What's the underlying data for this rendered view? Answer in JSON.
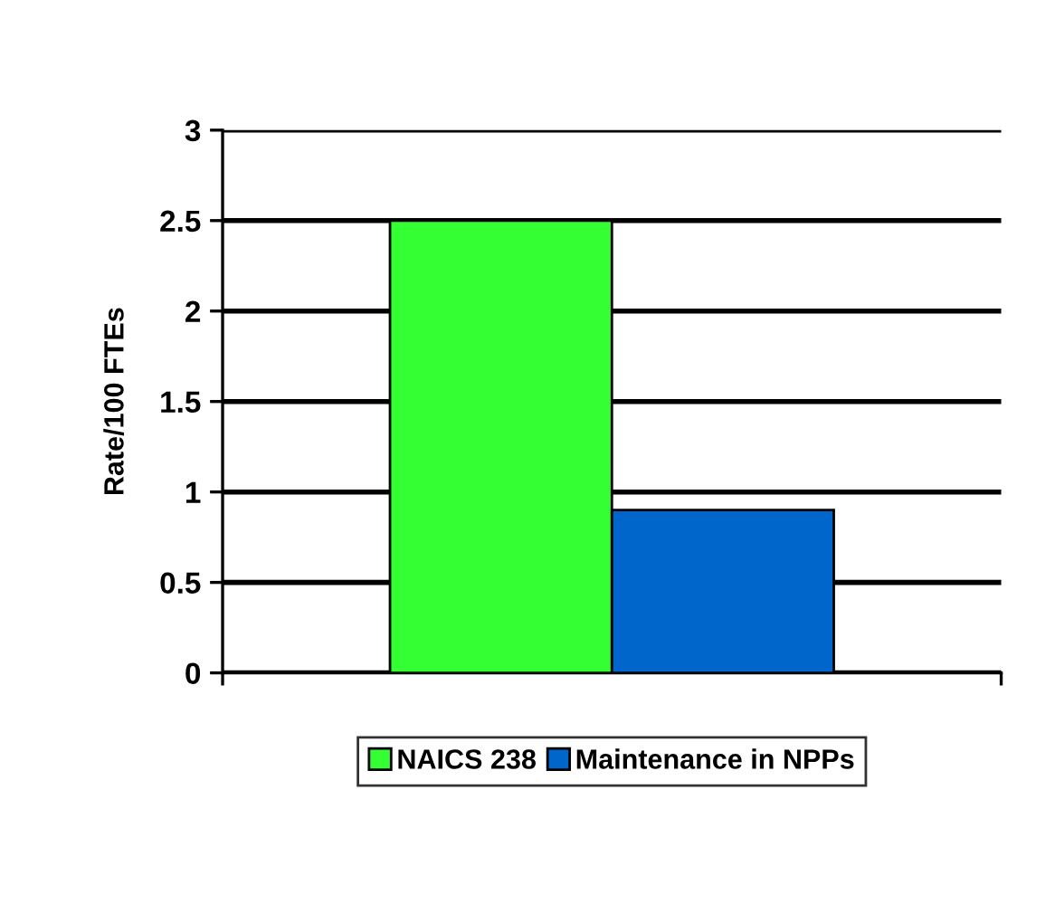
{
  "chart_data": {
    "type": "bar",
    "ylabel": "Rate/100 FTEs",
    "categories": [
      null
    ],
    "series": [
      {
        "name": "NAICS 238",
        "color": "#33ff33",
        "values": [
          2.5
        ]
      },
      {
        "name": "Maintenance in NPPs",
        "color": "#0066cc",
        "values": [
          0.9
        ]
      }
    ],
    "ylim": [
      0,
      3
    ],
    "yticks": [
      0,
      0.5,
      1,
      1.5,
      2,
      2.5,
      3
    ],
    "grid": "y",
    "legend": "bottom"
  }
}
